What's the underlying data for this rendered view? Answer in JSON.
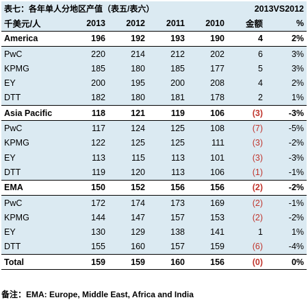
{
  "table": {
    "title": "表七：各年单人分地区产值（表五/表六）",
    "comparison_title": "2013VS2012",
    "unit_label": "千美元/人",
    "years": [
      "2013",
      "2012",
      "2011",
      "2010"
    ],
    "amount_label": "金额",
    "pct_label": "%",
    "rows": [
      {
        "type": "region",
        "name": "America",
        "v": [
          "196",
          "192",
          "193",
          "190"
        ],
        "diff": "4",
        "diff_neg": false,
        "pct": "2%",
        "pct_neg": false
      },
      {
        "type": "firm",
        "name": "PwC",
        "v": [
          "220",
          "214",
          "212",
          "202"
        ],
        "diff": "6",
        "diff_neg": false,
        "pct": "3%",
        "pct_neg": false
      },
      {
        "type": "firm",
        "name": "KPMG",
        "v": [
          "185",
          "180",
          "185",
          "177"
        ],
        "diff": "5",
        "diff_neg": false,
        "pct": "3%",
        "pct_neg": false
      },
      {
        "type": "firm",
        "name": "EY",
        "v": [
          "200",
          "195",
          "200",
          "208"
        ],
        "diff": "4",
        "diff_neg": false,
        "pct": "2%",
        "pct_neg": false
      },
      {
        "type": "firm",
        "name": "DTT",
        "v": [
          "182",
          "180",
          "181",
          "178"
        ],
        "diff": "2",
        "diff_neg": false,
        "pct": "1%",
        "pct_neg": false
      },
      {
        "type": "region",
        "name": "Asia Pacific",
        "v": [
          "118",
          "121",
          "119",
          "106"
        ],
        "diff": "(3)",
        "diff_neg": true,
        "pct": "-3%",
        "pct_neg": false
      },
      {
        "type": "firm",
        "name": "PwC",
        "v": [
          "117",
          "124",
          "125",
          "108"
        ],
        "diff": "(7)",
        "diff_neg": true,
        "pct": "-5%",
        "pct_neg": false
      },
      {
        "type": "firm",
        "name": "KPMG",
        "v": [
          "122",
          "125",
          "125",
          "111"
        ],
        "diff": "(3)",
        "diff_neg": true,
        "pct": "-2%",
        "pct_neg": false
      },
      {
        "type": "firm",
        "name": "EY",
        "v": [
          "113",
          "115",
          "113",
          "101"
        ],
        "diff": "(3)",
        "diff_neg": true,
        "pct": "-3%",
        "pct_neg": false
      },
      {
        "type": "firm",
        "name": "DTT",
        "v": [
          "119",
          "120",
          "113",
          "106"
        ],
        "diff": "(1)",
        "diff_neg": true,
        "pct": "-1%",
        "pct_neg": false
      },
      {
        "type": "region",
        "name": "EMA",
        "v": [
          "150",
          "152",
          "156",
          "156"
        ],
        "diff": "(2)",
        "diff_neg": true,
        "pct": "-2%",
        "pct_neg": false
      },
      {
        "type": "firm",
        "name": "PwC",
        "v": [
          "172",
          "174",
          "173",
          "169"
        ],
        "diff": "(2)",
        "diff_neg": true,
        "pct": "-1%",
        "pct_neg": false
      },
      {
        "type": "firm",
        "name": "KPMG",
        "v": [
          "144",
          "147",
          "157",
          "153"
        ],
        "diff": "(2)",
        "diff_neg": true,
        "pct": "-2%",
        "pct_neg": false
      },
      {
        "type": "firm",
        "name": "EY",
        "v": [
          "130",
          "129",
          "138",
          "141"
        ],
        "diff": "1",
        "diff_neg": false,
        "pct": "1%",
        "pct_neg": false
      },
      {
        "type": "firm",
        "name": "DTT",
        "v": [
          "155",
          "160",
          "157",
          "159"
        ],
        "diff": "(6)",
        "diff_neg": true,
        "pct": "-4%",
        "pct_neg": false
      },
      {
        "type": "total",
        "name": "Total",
        "v": [
          "159",
          "159",
          "160",
          "156"
        ],
        "diff": "(0)",
        "diff_neg": true,
        "pct": "0%",
        "pct_neg": false
      }
    ]
  },
  "footnote": "备注：EMA: Europe, Middle East, Africa and India",
  "colors": {
    "negative": "#c0342c",
    "row_fill": "#dbeaf2",
    "bold_row_fill": "#ffffff"
  }
}
